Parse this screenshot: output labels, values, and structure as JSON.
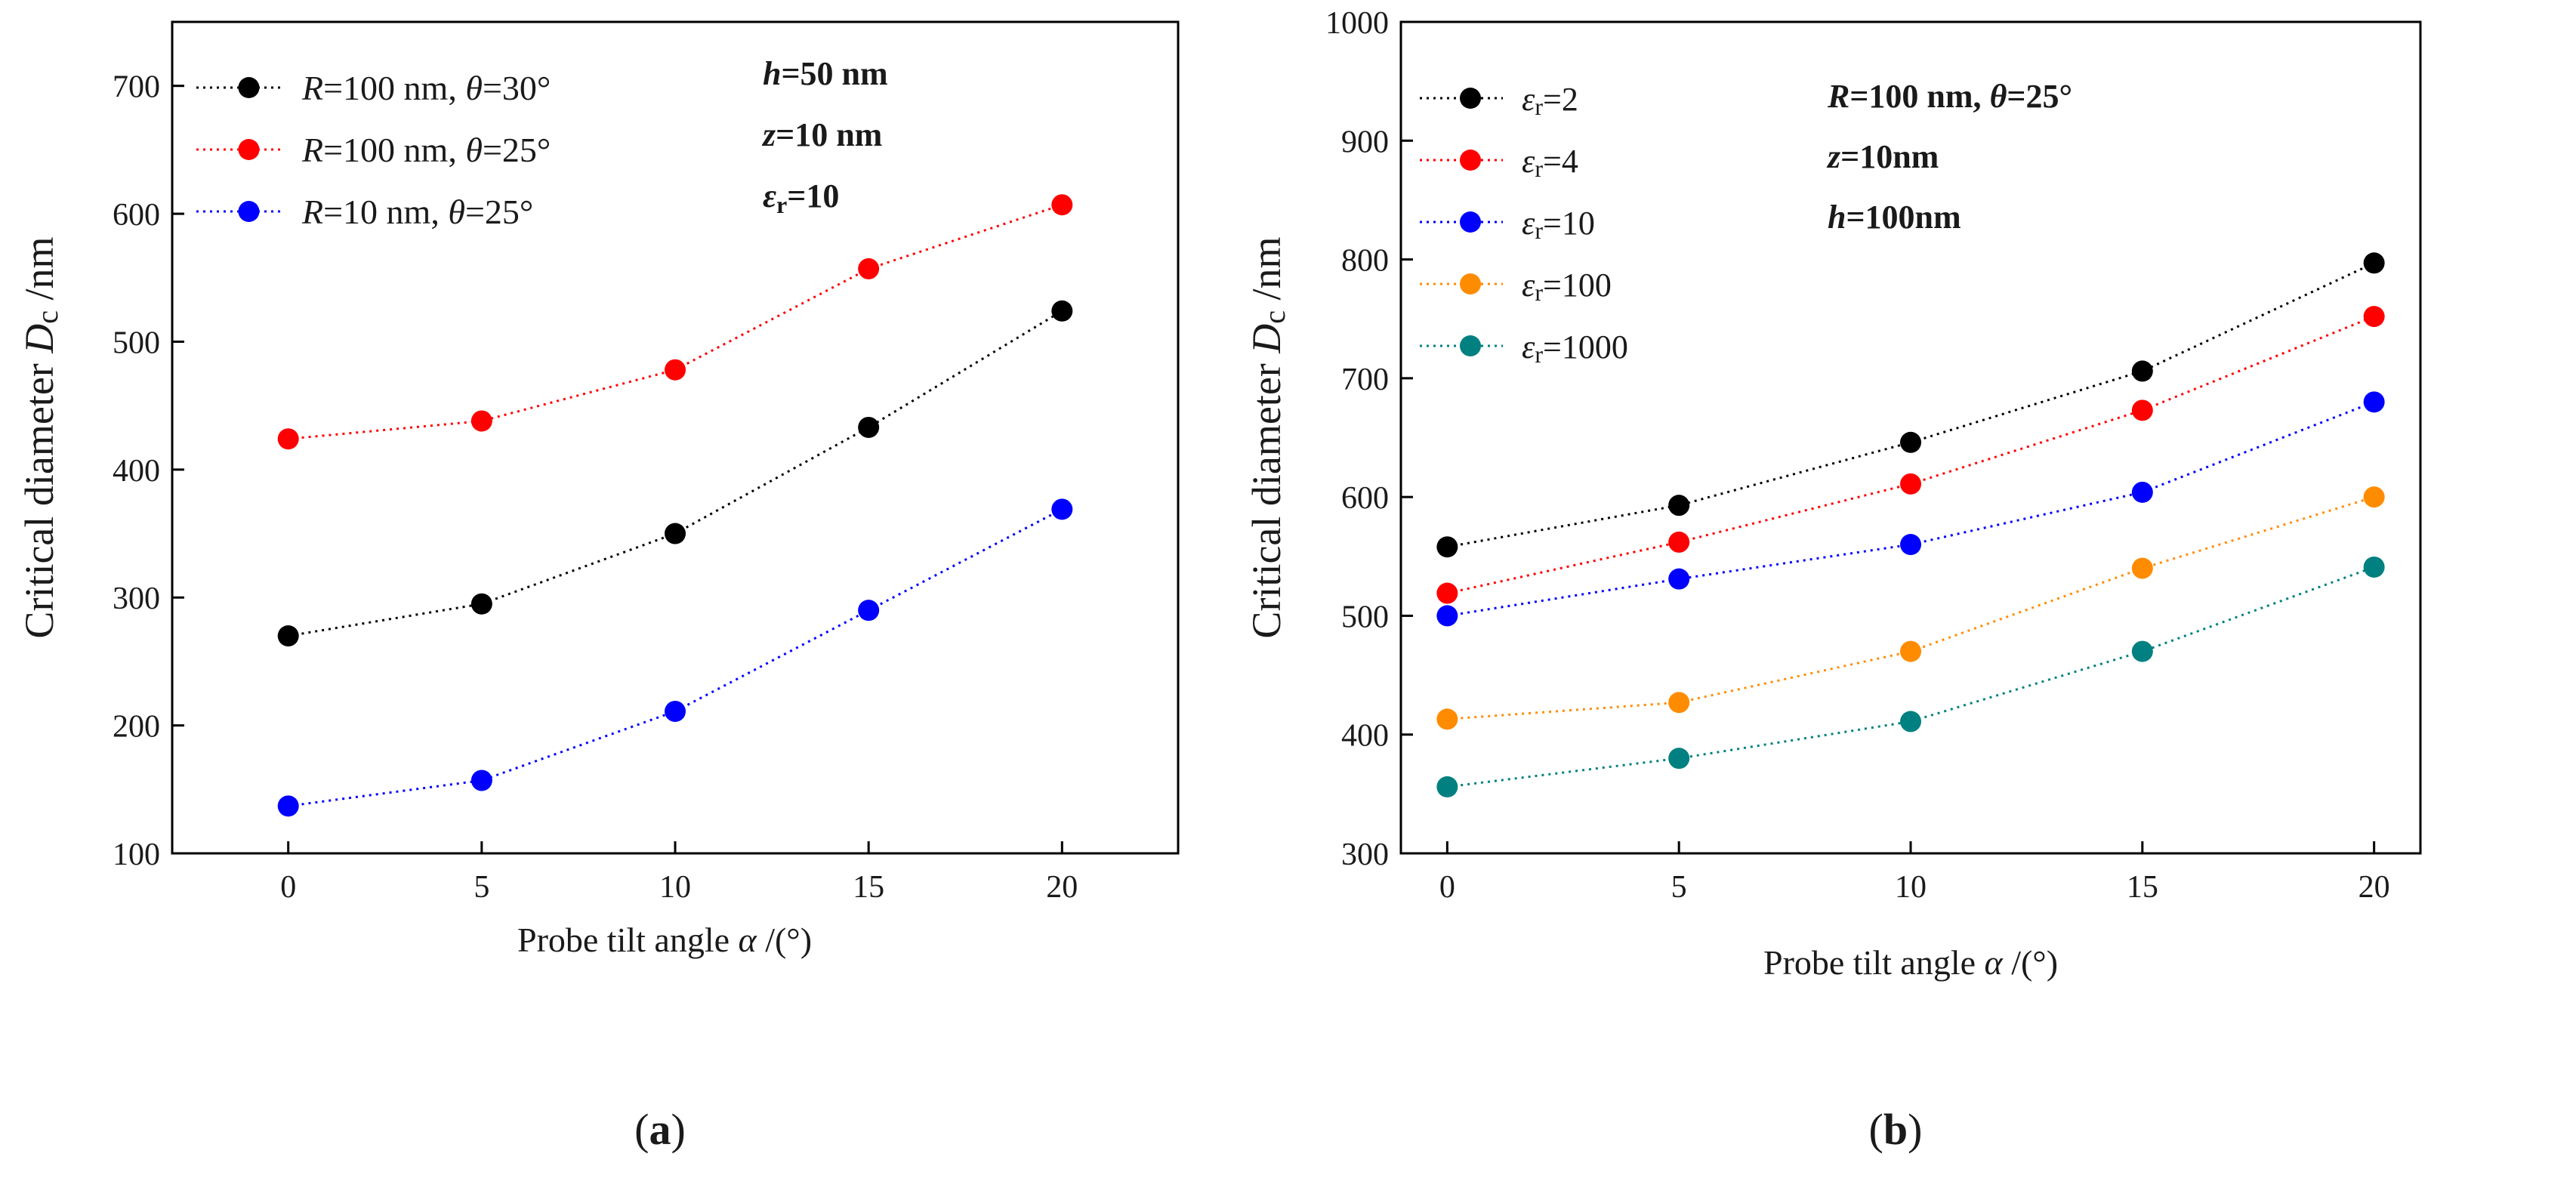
{
  "chart_data": [
    {
      "panel_label": "(a)",
      "type": "line",
      "line_style": "dotted",
      "x": [
        0,
        5,
        10,
        15,
        20
      ],
      "xlim": [
        -3,
        23
      ],
      "ylim": [
        100,
        750
      ],
      "xticks": [
        0,
        5,
        10,
        15,
        20
      ],
      "yticks": [
        100,
        200,
        300,
        400,
        500,
        600,
        700
      ],
      "xlabel_parts": [
        "Probe tilt angle ",
        "α",
        " /(°)"
      ],
      "ylabel_parts": [
        "Critical diameter ",
        "D",
        "c",
        " /nm"
      ],
      "legend_position": "top-left",
      "series": [
        {
          "name_parts": [
            "R",
            "=100 nm,  ",
            "θ",
            "=30°"
          ],
          "color": "#000000",
          "values": [
            270,
            295,
            350,
            433,
            524
          ]
        },
        {
          "name_parts": [
            "R",
            "=100 nm,  ",
            "θ",
            "=25°"
          ],
          "color": "#ff0000",
          "values": [
            424,
            438,
            478,
            557,
            607
          ]
        },
        {
          "name_parts": [
            "R",
            "=10 nm,  ",
            "θ",
            "=25°"
          ],
          "color": "#0000ff",
          "values": [
            137,
            157,
            211,
            290,
            369
          ]
        }
      ],
      "annotation_lines": [
        [
          "h",
          "=50 nm"
        ],
        [
          "z",
          "=10 nm"
        ],
        [
          "ε",
          "r",
          "=10"
        ]
      ]
    },
    {
      "panel_label": "(b)",
      "type": "line",
      "line_style": "dotted",
      "x": [
        0,
        5,
        10,
        15,
        20
      ],
      "xlim": [
        -1,
        21
      ],
      "ylim": [
        300,
        1000
      ],
      "xticks": [
        0,
        5,
        10,
        15,
        20
      ],
      "yticks": [
        300,
        400,
        500,
        600,
        700,
        800,
        900,
        1000
      ],
      "xlabel_parts": [
        "Probe tilt angle ",
        "α",
        " /(°)"
      ],
      "ylabel_parts": [
        "Critical diameter ",
        "D",
        "c",
        " /nm"
      ],
      "legend_position": "top-left",
      "series": [
        {
          "name_parts": [
            "ε",
            "r",
            "=2"
          ],
          "color": "#000000",
          "values": [
            558,
            593,
            646,
            706,
            797
          ]
        },
        {
          "name_parts": [
            "ε",
            "r",
            "=4"
          ],
          "color": "#ff0000",
          "values": [
            519,
            562,
            611,
            673,
            752
          ]
        },
        {
          "name_parts": [
            "ε",
            "r",
            "=10"
          ],
          "color": "#0000ff",
          "values": [
            500,
            531,
            560,
            604,
            680
          ]
        },
        {
          "name_parts": [
            "ε",
            "r",
            "=100"
          ],
          "color": "#ff8c00",
          "values": [
            413,
            427,
            470,
            540,
            600
          ]
        },
        {
          "name_parts": [
            "ε",
            "r",
            "=1000"
          ],
          "color": "#008080",
          "values": [
            356,
            380,
            411,
            470,
            541
          ]
        }
      ],
      "annotation_lines": [
        [
          "R",
          "=100 nm, ",
          "θ",
          "=25°"
        ],
        [
          "z",
          "=10nm"
        ],
        [
          "h",
          "=100nm"
        ]
      ]
    }
  ]
}
